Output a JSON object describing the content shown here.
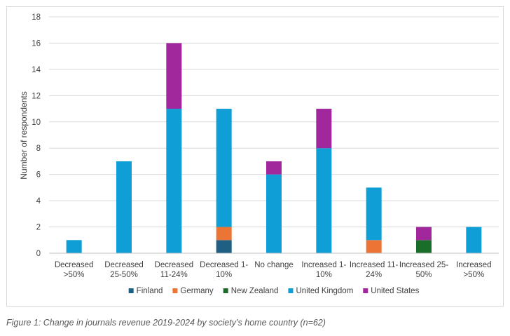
{
  "chart_data": {
    "type": "bar",
    "stacked": true,
    "title": "",
    "xlabel": "",
    "ylabel": "Number of respondents",
    "ylim": [
      0,
      18
    ],
    "yticks": [
      0,
      2,
      4,
      6,
      8,
      10,
      12,
      14,
      16,
      18
    ],
    "grid": true,
    "legend_position": "bottom",
    "categories": [
      [
        "Decreased",
        ">50%"
      ],
      [
        "Decreased",
        "25-50%"
      ],
      [
        "Decreased",
        "11-24%"
      ],
      [
        "Decreased 1-",
        "10%"
      ],
      [
        "No change"
      ],
      [
        "Increased 1-",
        "10%"
      ],
      [
        "Increased 11-",
        "24%"
      ],
      [
        "Increased 25-",
        "50%"
      ],
      [
        "Increased",
        ">50%"
      ]
    ],
    "series": [
      {
        "name": "Finland",
        "color": "#1f5f82",
        "values": [
          0,
          0,
          0,
          1,
          0,
          0,
          0,
          0,
          0
        ]
      },
      {
        "name": "Germany",
        "color": "#ec7434",
        "values": [
          0,
          0,
          0,
          1,
          0,
          0,
          1,
          0,
          0
        ]
      },
      {
        "name": "New Zealand",
        "color": "#1b6e2a",
        "values": [
          0,
          0,
          0,
          0,
          0,
          0,
          0,
          1,
          0
        ]
      },
      {
        "name": "United Kingdom",
        "color": "#0f9ed5",
        "values": [
          1,
          7,
          11,
          9,
          6,
          8,
          4,
          0,
          2
        ]
      },
      {
        "name": "United States",
        "color": "#a0289c",
        "values": [
          0,
          0,
          5,
          0,
          1,
          3,
          0,
          1,
          0
        ]
      }
    ]
  },
  "caption": "Figure 1: Change in journals revenue 2019-2024 by society’s home country (n=62)"
}
